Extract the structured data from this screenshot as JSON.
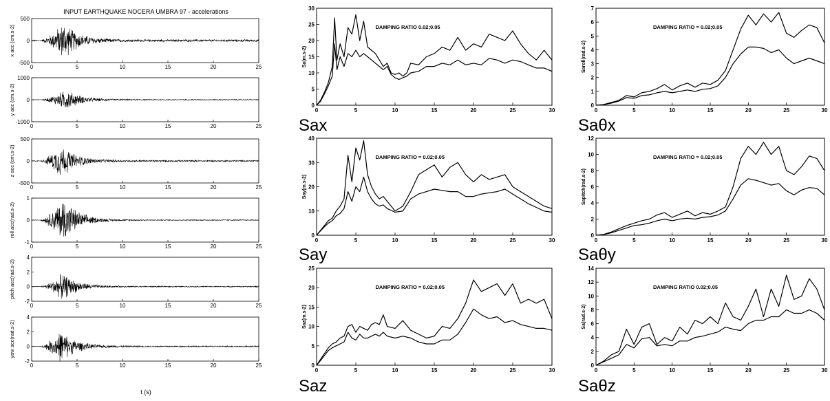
{
  "left_column": {
    "title": "INPUT EARTHQUAKE NOCERA UMBRA 97 - accelerations",
    "xlabel": "t (s)",
    "xlim": [
      0,
      25
    ],
    "xticks": [
      0,
      5,
      10,
      15,
      20,
      25
    ],
    "panels": [
      {
        "ylabel": "x acc (cm.s-2)",
        "ylim": [
          -500,
          500
        ],
        "yticks": [
          -500,
          0,
          500
        ],
        "amp": 470,
        "peak_t": 3.5,
        "noise": 0.06
      },
      {
        "ylabel": "y acc (cm.s-2)",
        "ylim": [
          -1000,
          1000
        ],
        "yticks": [
          -1000,
          0,
          1000
        ],
        "amp": 520,
        "peak_t": 3.8,
        "noise": 0.04
      },
      {
        "ylabel": "z acc (cm.s-2)",
        "ylim": [
          -500,
          500
        ],
        "yticks": [
          -500,
          0,
          500
        ],
        "amp": 410,
        "peak_t": 3.2,
        "noise": 0.05
      },
      {
        "ylabel": "roll acc(rad.s-2)",
        "ylim": [
          -1,
          1
        ],
        "yticks": [
          -1,
          0,
          1
        ],
        "amp": 1.15,
        "peak_t": 3.5,
        "noise": 0.02
      },
      {
        "ylabel": "pitch acc(rad.s-2)",
        "ylim": [
          -2,
          4
        ],
        "yticks": [
          -2,
          0,
          2,
          4
        ],
        "amp": 2.0,
        "peak_t": 3.4,
        "noise": 0.04
      },
      {
        "ylabel": "yaw acc(rad.s-2)",
        "ylim": [
          -2,
          4
        ],
        "yticks": [
          -2,
          0,
          2,
          4
        ],
        "amp": 2.4,
        "peak_t": 3.2,
        "noise": 0.04
      }
    ]
  },
  "chart_data": [
    {
      "type": "line",
      "name": "Sax",
      "ylabel": "Sa(m.s-2)",
      "annotation": "DAMPING RATIO 0.02;0.05",
      "xlim": [
        0,
        30
      ],
      "ylim": [
        0,
        30
      ],
      "xticks": [
        0,
        5,
        10,
        15,
        20,
        25,
        30
      ],
      "yticks": [
        0,
        5,
        10,
        15,
        20,
        25,
        30
      ],
      "x": [
        0,
        0.5,
        1,
        1.5,
        2,
        2.3,
        2.6,
        3,
        3.5,
        4,
        4.5,
        5,
        5.5,
        6,
        6.5,
        7,
        7.5,
        8,
        8.5,
        9,
        9.5,
        10,
        10.5,
        11,
        11.5,
        12,
        13,
        14,
        15,
        16,
        17,
        18,
        19,
        20,
        21,
        22,
        23,
        24,
        25,
        26,
        27,
        28,
        29,
        30
      ],
      "series": [
        {
          "values": [
            0,
            1.5,
            4,
            7,
            12,
            27,
            14,
            19,
            15,
            24,
            22,
            28,
            20,
            26,
            18,
            17,
            16,
            14,
            12,
            13,
            10,
            9.5,
            10,
            9,
            10,
            13,
            12.5,
            15,
            16,
            18,
            17,
            21,
            17,
            19,
            18,
            22,
            21,
            20,
            23,
            19,
            16,
            14,
            17,
            14
          ]
        },
        {
          "values": [
            0,
            1.2,
            3.5,
            6,
            9,
            19,
            11,
            15,
            12,
            16,
            15,
            17,
            15,
            16,
            15,
            14,
            13,
            12,
            11,
            12,
            9.5,
            8.5,
            8,
            8.5,
            9,
            10,
            10.5,
            12,
            12,
            13,
            12.5,
            14,
            12.5,
            13,
            12.5,
            14.5,
            14,
            13,
            14,
            13.5,
            12.5,
            11.5,
            11.5,
            10.5
          ]
        }
      ]
    },
    {
      "type": "line",
      "name": "Saθx",
      "ylabel": "Saroll(rad.s-2)",
      "annotation": "DAMPING RATIO = 0.02;0.05",
      "xlim": [
        0,
        30
      ],
      "ylim": [
        0,
        7
      ],
      "xticks": [
        0,
        5,
        10,
        15,
        20,
        25,
        30
      ],
      "yticks": [
        0,
        1,
        2,
        3,
        4,
        5,
        6,
        7
      ],
      "x": [
        0,
        1,
        2,
        3,
        4,
        5,
        6,
        7,
        8,
        9,
        10,
        11,
        12,
        13,
        14,
        15,
        16,
        17,
        18,
        19,
        20,
        21,
        22,
        23,
        24,
        25,
        26,
        27,
        28,
        29,
        30
      ],
      "series": [
        {
          "values": [
            0,
            0.05,
            0.2,
            0.35,
            0.7,
            0.6,
            0.9,
            1.0,
            1.2,
            1.5,
            1.1,
            1.4,
            1.6,
            1.3,
            1.6,
            1.5,
            1.8,
            2.5,
            4.0,
            5.5,
            6.5,
            5.8,
            6.6,
            6.0,
            6.7,
            5.2,
            4.9,
            5.4,
            5.8,
            5.6,
            4.5
          ]
        },
        {
          "values": [
            0,
            0.04,
            0.15,
            0.3,
            0.55,
            0.5,
            0.7,
            0.75,
            0.9,
            1.0,
            0.9,
            1.0,
            1.1,
            1.0,
            1.15,
            1.2,
            1.4,
            2.0,
            3.0,
            3.7,
            4.2,
            4.2,
            4.1,
            3.8,
            4.0,
            3.4,
            3.0,
            3.2,
            3.4,
            3.2,
            3.0
          ]
        }
      ]
    },
    {
      "type": "line",
      "name": "Say",
      "ylabel": "Say(m.s-2)",
      "annotation": "DAMPING RATIO = 0.02;0.05",
      "xlim": [
        0,
        30
      ],
      "ylim": [
        0,
        40
      ],
      "xticks": [
        0,
        5,
        10,
        15,
        20,
        25,
        30
      ],
      "yticks": [
        0,
        10,
        20,
        30,
        40
      ],
      "x": [
        0,
        0.5,
        1,
        1.5,
        2,
        2.5,
        3,
        3.5,
        4,
        4.5,
        5,
        5.5,
        6,
        6.5,
        7,
        7.5,
        8,
        8.5,
        9,
        10,
        11,
        12,
        13,
        14,
        15,
        16,
        17,
        18,
        19,
        20,
        21,
        22,
        23,
        24,
        25,
        26,
        27,
        28,
        29,
        30
      ],
      "series": [
        {
          "values": [
            0,
            2,
            4,
            6,
            7,
            10,
            12,
            15,
            33,
            22,
            36,
            31,
            39,
            25,
            20,
            17,
            15,
            16,
            14,
            10,
            12,
            18,
            25,
            27,
            29,
            24,
            28,
            30,
            25,
            22,
            25,
            23,
            24,
            25,
            20,
            18,
            16,
            14,
            12,
            11
          ]
        },
        {
          "values": [
            0,
            1.8,
            3.5,
            5,
            6,
            8,
            9,
            11,
            18,
            14,
            20,
            18,
            24,
            18,
            15,
            13,
            12,
            12.5,
            11,
            9.5,
            10,
            15,
            17,
            18,
            19,
            18.5,
            18,
            18,
            16,
            16,
            17,
            17.5,
            18,
            19,
            17,
            15,
            13,
            11.5,
            10,
            9.5
          ]
        }
      ]
    },
    {
      "type": "line",
      "name": "Saθy",
      "ylabel": "Sapitch(rad.s-2)",
      "annotation": "DAMPING RATIO = 0.02;0.05",
      "xlim": [
        0,
        30
      ],
      "ylim": [
        0,
        12
      ],
      "xticks": [
        0,
        5,
        10,
        15,
        20,
        25,
        30
      ],
      "yticks": [
        0,
        2,
        4,
        6,
        8,
        10,
        12
      ],
      "x": [
        0,
        1,
        2,
        3,
        4,
        5,
        6,
        7,
        8,
        9,
        10,
        11,
        12,
        13,
        14,
        15,
        16,
        17,
        18,
        19,
        20,
        21,
        22,
        23,
        24,
        25,
        26,
        27,
        28,
        29,
        30
      ],
      "series": [
        {
          "values": [
            0,
            0.1,
            0.4,
            0.8,
            1.2,
            1.5,
            1.8,
            2.0,
            2.5,
            2.8,
            2.2,
            2.6,
            3.0,
            2.4,
            2.8,
            2.6,
            3.0,
            3.5,
            6.0,
            9.5,
            11.0,
            10.0,
            11.5,
            10.0,
            11.0,
            8.0,
            7.5,
            8.5,
            9.8,
            9.5,
            8.0
          ]
        },
        {
          "values": [
            0,
            0.08,
            0.3,
            0.6,
            0.9,
            1.2,
            1.3,
            1.5,
            1.8,
            2.0,
            1.8,
            2.0,
            2.1,
            2.0,
            2.2,
            2.3,
            2.5,
            3.0,
            4.5,
            6.2,
            7.0,
            6.8,
            6.5,
            6.2,
            6.4,
            5.5,
            5.0,
            5.6,
            5.9,
            5.8,
            5.0
          ]
        }
      ]
    },
    {
      "type": "line",
      "name": "Saz",
      "ylabel": "Saz(m.s-2)",
      "annotation": "DAMPING RATIO = 0.02;0.05",
      "xlim": [
        0,
        30
      ],
      "ylim": [
        0,
        25
      ],
      "xticks": [
        0,
        5,
        10,
        15,
        20,
        25,
        30
      ],
      "yticks": [
        0,
        5,
        10,
        15,
        20,
        25
      ],
      "x": [
        0,
        0.5,
        1,
        1.5,
        2,
        2.5,
        3,
        3.5,
        4,
        4.5,
        5,
        5.5,
        6,
        6.5,
        7,
        7.5,
        8,
        8.5,
        9,
        10,
        11,
        12,
        13,
        14,
        15,
        16,
        17,
        18,
        19,
        20,
        21,
        22,
        23,
        24,
        25,
        26,
        27,
        28,
        29,
        30
      ],
      "series": [
        {
          "values": [
            0,
            1.5,
            3,
            4.5,
            5.5,
            6,
            7,
            7.5,
            10,
            10.5,
            8.5,
            10,
            9.5,
            9,
            10.5,
            11,
            10.5,
            13,
            10,
            9.5,
            11.5,
            9,
            8,
            7,
            7.5,
            10,
            9.5,
            12,
            16,
            22,
            19,
            20,
            21,
            18,
            21,
            16,
            17,
            16,
            17,
            12
          ]
        },
        {
          "values": [
            0,
            1.2,
            2.5,
            3.8,
            4.5,
            5,
            5.5,
            6,
            8.5,
            7,
            6.5,
            8,
            7,
            7,
            7.5,
            8,
            7.5,
            8.5,
            7.5,
            7,
            7.5,
            7,
            6,
            5.5,
            5.5,
            6.5,
            6.5,
            8,
            11,
            14.5,
            13,
            12,
            12.5,
            11,
            11.5,
            10.5,
            10,
            9.5,
            9.5,
            9
          ]
        }
      ]
    },
    {
      "type": "line",
      "name": "Saθz",
      "ylabel": "Sa(rad.s-2)",
      "annotation": "DAMPING RATIO 0.02;0.05",
      "xlim": [
        0,
        30
      ],
      "ylim": [
        0,
        14
      ],
      "xticks": [
        0,
        5,
        10,
        15,
        20,
        25,
        30
      ],
      "yticks": [
        0,
        2,
        4,
        6,
        8,
        10,
        12,
        14
      ],
      "x": [
        0,
        1,
        2,
        3,
        4,
        5,
        6,
        7,
        8,
        9,
        10,
        11,
        12,
        13,
        14,
        15,
        16,
        17,
        18,
        19,
        20,
        21,
        22,
        23,
        24,
        25,
        26,
        27,
        28,
        29,
        30
      ],
      "series": [
        {
          "values": [
            0,
            0.6,
            1.5,
            2.0,
            5.2,
            3.0,
            5.5,
            6.0,
            3.0,
            4.0,
            3.5,
            5.5,
            4.5,
            6.5,
            6.0,
            7.0,
            6.0,
            9.0,
            7.0,
            6.5,
            8.5,
            11.0,
            7.0,
            11.0,
            8.5,
            13.0,
            9.5,
            10.0,
            12.5,
            11.0,
            8.0
          ]
        },
        {
          "values": [
            0,
            0.5,
            1.0,
            1.5,
            3.0,
            2.5,
            3.8,
            4.0,
            2.8,
            3.0,
            2.8,
            3.5,
            3.5,
            4.0,
            4.2,
            4.5,
            4.8,
            5.5,
            5.2,
            5.0,
            6.0,
            6.5,
            6.5,
            7.0,
            7.0,
            8.0,
            7.5,
            7.5,
            8.0,
            7.5,
            6.5
          ]
        }
      ]
    }
  ]
}
